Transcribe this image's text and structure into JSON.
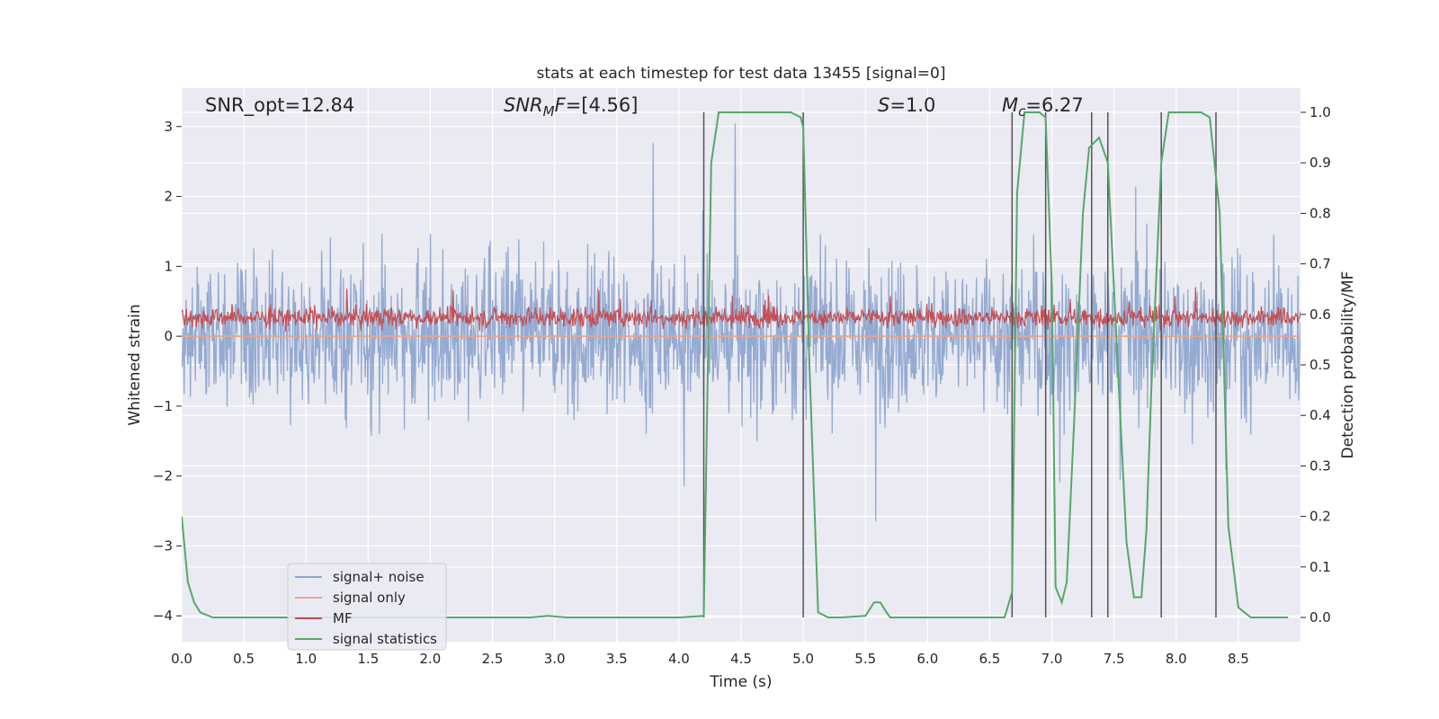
{
  "chart_data": {
    "type": "line",
    "title": "stats at each timestep for test data 13455 [signal=0]",
    "xlabel": "Time (s)",
    "ylabel": "Whitened strain",
    "ylabel_right": "Detection probability/MF",
    "xlim": [
      0.0,
      9.0
    ],
    "ylim": [
      -4.37,
      3.55
    ],
    "ylim_right": [
      -0.048,
      1.048
    ],
    "x_ticks": [
      "0.0",
      "0.5",
      "1.0",
      "1.5",
      "2.0",
      "2.5",
      "3.0",
      "3.5",
      "4.0",
      "4.5",
      "5.0",
      "5.5",
      "6.0",
      "6.5",
      "7.0",
      "7.5",
      "8.0",
      "8.5"
    ],
    "y_ticks": [
      "3",
      "2",
      "1",
      "0",
      "−1",
      "−2",
      "−3",
      "−4"
    ],
    "y_ticks_right": [
      "1.0",
      "0.9",
      "0.8",
      "0.7",
      "0.6",
      "0.5",
      "0.4",
      "0.3",
      "0.2",
      "0.1",
      "0.0"
    ],
    "grid": true,
    "legend_position": "lower-left",
    "annotations": {
      "snr_opt": "SNR_opt=12.84",
      "snr_mf_italic": "SNR",
      "snr_mf_sub": "M",
      "snr_mf_italic2": "F",
      "snr_mf_rest": "=[4.56]",
      "s_italic": "S",
      "s_rest": "=1.0",
      "mc_italic": "M",
      "mc_sub": "c",
      "mc_rest": "=6.27"
    },
    "series": [
      {
        "name": "signal+ noise",
        "color": "#8fa6cf",
        "axis": "left",
        "description_level": "noise band approx ±1.8 with spikes to ±3.6"
      },
      {
        "name": "signal only",
        "color": "#e8a58a",
        "axis": "left",
        "values_constant": 0.0
      },
      {
        "name": "MF",
        "color": "#c44e52",
        "axis": "left",
        "range": [
          0.0,
          0.6
        ]
      },
      {
        "name": "signal statistics",
        "color": "#55a868",
        "axis": "right",
        "x": [
          0.0,
          0.05,
          0.1,
          0.15,
          0.25,
          0.5,
          1.0,
          2.0,
          2.5,
          2.8,
          2.95,
          3.1,
          3.5,
          4.0,
          4.2,
          4.26,
          4.32,
          4.4,
          4.6,
          4.9,
          4.98,
          5.0,
          5.05,
          5.12,
          5.2,
          5.3,
          5.5,
          5.57,
          5.62,
          5.67,
          5.7,
          5.8,
          6.2,
          6.5,
          6.62,
          6.68,
          6.72,
          6.78,
          6.85,
          6.9,
          6.95,
          7.0,
          7.03,
          7.08,
          7.12,
          7.18,
          7.25,
          7.3,
          7.38,
          7.45,
          7.52,
          7.6,
          7.66,
          7.72,
          7.76,
          7.8,
          7.88,
          7.94,
          8.0,
          8.2,
          8.27,
          8.35,
          8.42,
          8.5,
          8.6,
          8.9
        ],
        "values": [
          0.2,
          0.07,
          0.03,
          0.01,
          0.0,
          0.0,
          0.0,
          0.0,
          0.0,
          0.0,
          0.003,
          0.0,
          0.0,
          0.0,
          0.003,
          0.9,
          1.0,
          1.0,
          1.0,
          1.0,
          0.99,
          0.97,
          0.5,
          0.01,
          0.0,
          0.0,
          0.003,
          0.03,
          0.03,
          0.01,
          0.0,
          0.0,
          0.0,
          0.0,
          0.0,
          0.05,
          0.84,
          1.0,
          1.0,
          1.0,
          0.99,
          0.65,
          0.06,
          0.03,
          0.07,
          0.39,
          0.8,
          0.93,
          0.95,
          0.9,
          0.55,
          0.15,
          0.04,
          0.04,
          0.17,
          0.45,
          0.9,
          1.0,
          1.0,
          1.0,
          0.99,
          0.8,
          0.18,
          0.02,
          0.0,
          0.0
        ]
      }
    ],
    "vertical_markers_x": [
      4.2,
      5.0,
      6.68,
      6.95,
      7.32,
      7.45,
      7.88,
      8.32
    ],
    "legend": [
      {
        "label": "signal+ noise",
        "color": "#8fa6cf"
      },
      {
        "label": "signal only",
        "color": "#e8a58a"
      },
      {
        "label": "MF",
        "color": "#c44e52"
      },
      {
        "label": "signal statistics",
        "color": "#55a868"
      }
    ]
  }
}
